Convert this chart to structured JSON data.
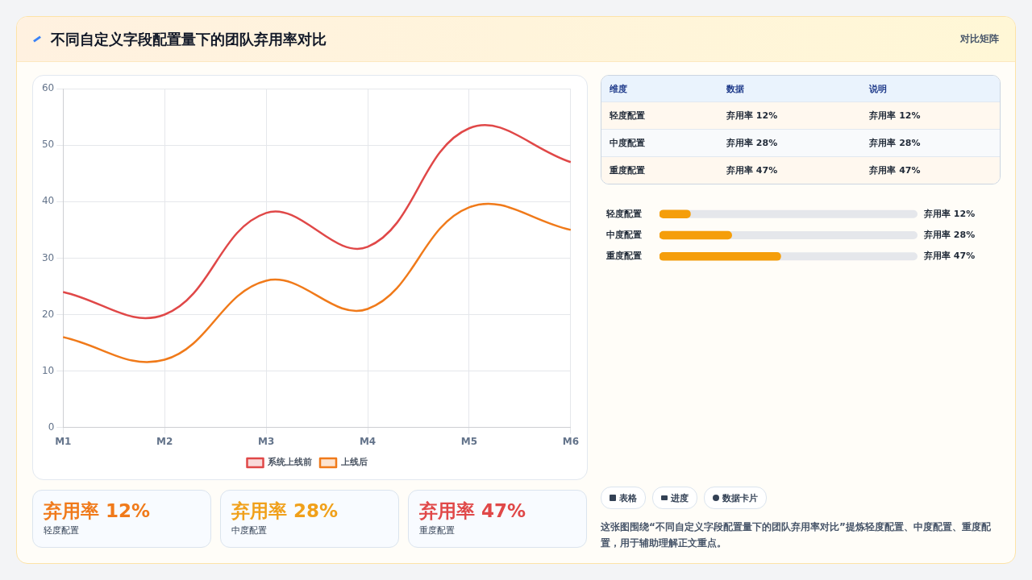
{
  "chart_data": [
    {
      "type": "line",
      "title": "不同自定义字段配置量下的团队弃用率对比",
      "annotations": [
        "对比矩阵"
      ],
      "categories": [
        "M1",
        "M2",
        "M3",
        "M4",
        "M5",
        "M6"
      ],
      "series": [
        {
          "name": "系统上线前",
          "color": "#e04848",
          "values": [
            24,
            20,
            38,
            32,
            53,
            47
          ]
        },
        {
          "name": "上线后",
          "color": "#f07a1a",
          "values": [
            16,
            12,
            26,
            21,
            39,
            35
          ]
        }
      ],
      "ylim": [
        0,
        60
      ],
      "yticks": [
        0,
        10,
        20,
        30,
        40,
        50,
        60
      ],
      "grid": true,
      "legend": "bottom"
    },
    {
      "type": "other",
      "annotations": [
        "维度",
        "数据",
        "说明",
        "轻度配置",
        "弃用率 12%",
        "弃用率 12%",
        "中度配置",
        "弃用率 28%",
        "弃用率 28%",
        "重度配置",
        "弃用率 47%",
        "弃用率 47%"
      ]
    },
    {
      "type": "bar",
      "orientation": "horizontal",
      "categories": [
        "轻度配置",
        "中度配置",
        "重度配置"
      ],
      "values": [
        12,
        28,
        47
      ],
      "value_labels": [
        "弃用率 12%",
        "弃用率 28%",
        "弃用率 47%"
      ],
      "color": "#f59e0b",
      "xlim": [
        0,
        100
      ],
      "tick_labels": "y"
    },
    {
      "type": "other",
      "annotations": [
        "弃用率 12%",
        "轻度配置",
        "弃用率 28%",
        "中度配置",
        "弃用率 47%",
        "重度配置"
      ],
      "colors": [
        "#f07a1a",
        "#f0a01a",
        "#e04848"
      ]
    },
    {
      "type": "other",
      "annotations": [
        "表格",
        "进度",
        "数据卡片",
        "这张图围绕“不同自定义字段配置量下的团队弃用率对比”提炼轻度配置、中度配置、重度配置，用于辅助理解正文重点。"
      ]
    }
  ]
}
